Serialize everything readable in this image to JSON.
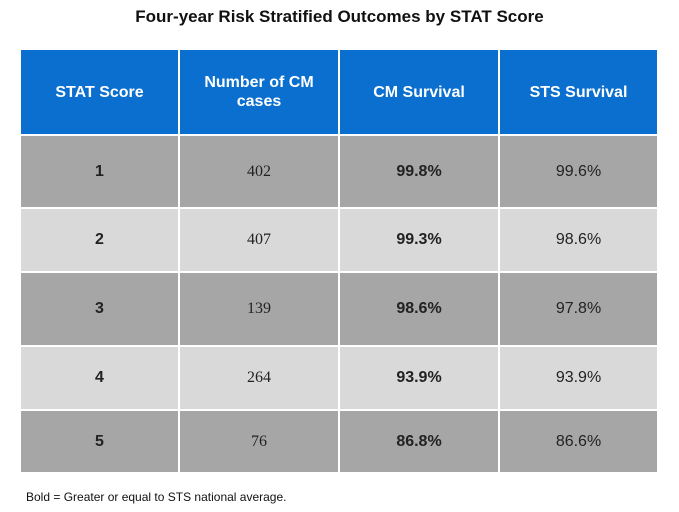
{
  "title": "Four-year Risk Stratified Outcomes by STAT Score",
  "table": {
    "headers": {
      "stat_score": "STAT Score",
      "cm_cases": "Number of CM cases",
      "cm_survival": "CM Survival",
      "sts_survival": "STS Survival"
    },
    "rows": [
      {
        "score": "1",
        "cases": "402",
        "cm": "99.8%",
        "sts": "99.6%"
      },
      {
        "score": "2",
        "cases": "407",
        "cm": "99.3%",
        "sts": "98.6%"
      },
      {
        "score": "3",
        "cases": "139",
        "cm": "98.6%",
        "sts": "97.8%"
      },
      {
        "score": "4",
        "cases": "264",
        "cm": "93.9%",
        "sts": "93.9%"
      },
      {
        "score": "5",
        "cases": "76",
        "cm": "86.8%",
        "sts": "86.6%"
      }
    ]
  },
  "footnote": "Bold = Greater or equal to STS national average.",
  "colors": {
    "header_bg": "#0a6fcf",
    "row_dark": "#a6a6a6",
    "row_light": "#d9d9d9"
  }
}
